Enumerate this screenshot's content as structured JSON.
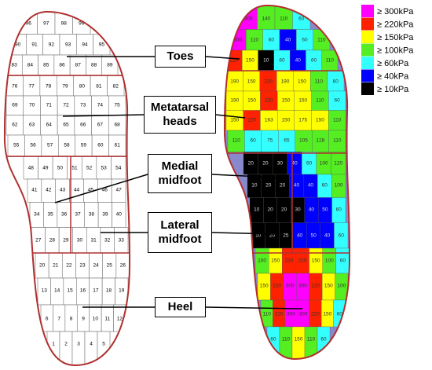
{
  "legend": {
    "items": [
      {
        "value": 300,
        "label": "≥ 300kPa",
        "color": "#ff00ff"
      },
      {
        "value": 220,
        "label": "≥ 220kPa",
        "color": "#ff2200"
      },
      {
        "value": 150,
        "label": "≥ 150kPa",
        "color": "#ffff00"
      },
      {
        "value": 100,
        "label": "≥ 100kPa",
        "color": "#55ee22"
      },
      {
        "value": 60,
        "label": "≥ 60kPa",
        "color": "#33ffff"
      },
      {
        "value": 40,
        "label": "≥ 40kPa",
        "color": "#0000ff"
      },
      {
        "value": 10,
        "label": "≥ 10kPa",
        "color": "#000000"
      }
    ]
  },
  "labels": {
    "toes": "Toes",
    "metatarsal_heads": "Metatarsal heads",
    "medial_midfoot": "Medial midfoot",
    "lateral_midfoot": "Lateral midfoot",
    "heel": "Heel"
  },
  "grid_map": {
    "rows": [
      [
        96,
        97,
        98,
        99
      ],
      [
        90,
        91,
        92,
        93,
        94,
        95
      ],
      [
        83,
        84,
        85,
        86,
        87,
        88,
        89
      ],
      [
        76,
        77,
        78,
        79,
        80,
        81,
        82
      ],
      [
        69,
        70,
        71,
        72,
        73,
        74,
        75
      ],
      [
        62,
        63,
        64,
        65,
        66,
        67,
        68
      ],
      [
        55,
        56,
        57,
        58,
        59,
        60,
        61
      ],
      [
        48,
        49,
        50,
        51,
        52,
        53,
        54
      ],
      [
        41,
        42,
        43,
        44,
        45,
        46,
        47
      ],
      [
        34,
        35,
        36,
        37,
        38,
        39,
        40
      ],
      [
        27,
        28,
        29,
        30,
        31,
        32,
        33
      ],
      [
        20,
        21,
        22,
        23,
        24,
        25,
        26
      ],
      [
        13,
        14,
        15,
        16,
        17,
        18,
        19
      ],
      [
        6,
        7,
        8,
        9,
        10,
        11,
        12
      ],
      [
        1,
        2,
        3,
        4,
        5
      ]
    ]
  },
  "pressure_map": {
    "rows": [
      [
        300,
        140,
        110,
        60
      ],
      [
        300,
        110,
        60,
        40,
        60,
        110
      ],
      [
        220,
        150,
        10,
        60,
        40,
        60,
        110
      ],
      [
        190,
        150,
        220,
        190,
        150,
        110,
        60
      ],
      [
        190,
        150,
        220,
        150,
        150,
        110,
        60
      ],
      [
        150,
        220,
        163,
        150,
        175,
        150,
        110
      ],
      [
        110,
        60,
        75,
        65,
        105,
        128,
        110
      ],
      [
        20,
        20,
        30,
        40,
        60,
        100,
        120
      ],
      [
        10,
        20,
        20,
        40,
        40,
        60,
        100
      ],
      [
        10,
        20,
        20,
        30,
        40,
        50,
        60
      ],
      [
        10,
        20,
        25,
        40,
        50,
        40,
        60
      ],
      [
        100,
        150,
        220,
        220,
        150,
        100,
        60
      ],
      [
        150,
        220,
        300,
        300,
        220,
        150,
        100
      ],
      [
        110,
        220,
        300,
        300,
        220,
        150,
        60
      ],
      [
        60,
        110,
        150,
        110,
        60
      ]
    ]
  }
}
